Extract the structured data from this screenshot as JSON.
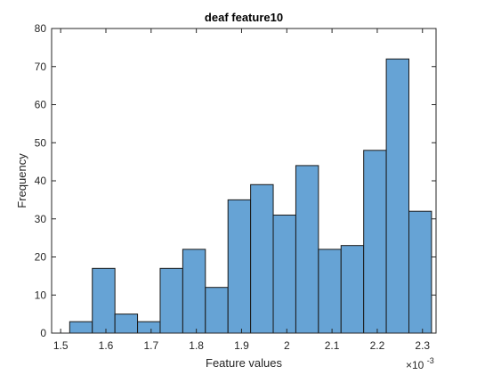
{
  "chart_data": {
    "type": "histogram",
    "title": "deaf feature10",
    "xlabel": "Feature values",
    "ylabel": "Frequency",
    "x_multiplier": {
      "base": "×10",
      "exponent": "-3"
    },
    "xlim": [
      1.48,
      2.33
    ],
    "ylim": [
      0,
      80
    ],
    "xticks": [
      "1.5",
      "1.6",
      "1.7",
      "1.8",
      "1.9",
      "2",
      "2.1",
      "2.2",
      "2.3"
    ],
    "xtick_values": [
      1.5,
      1.6,
      1.7,
      1.8,
      1.9,
      2.0,
      2.1,
      2.2,
      2.3
    ],
    "yticks": [
      "0",
      "10",
      "20",
      "30",
      "40",
      "50",
      "60",
      "70",
      "80"
    ],
    "ytick_values": [
      0,
      10,
      20,
      30,
      40,
      50,
      60,
      70,
      80
    ],
    "bin_edges": [
      1.52,
      1.57,
      1.62,
      1.67,
      1.72,
      1.77,
      1.82,
      1.87,
      1.92,
      1.97,
      2.02,
      2.07,
      2.12,
      2.17,
      2.22,
      2.27,
      2.32
    ],
    "counts": [
      3,
      17,
      5,
      3,
      17,
      22,
      12,
      35,
      39,
      31,
      44,
      22,
      23,
      48,
      72,
      32
    ],
    "bar_color": "#66a3d5",
    "edge_color": "#1a1a1a",
    "grid": false,
    "box": true
  }
}
